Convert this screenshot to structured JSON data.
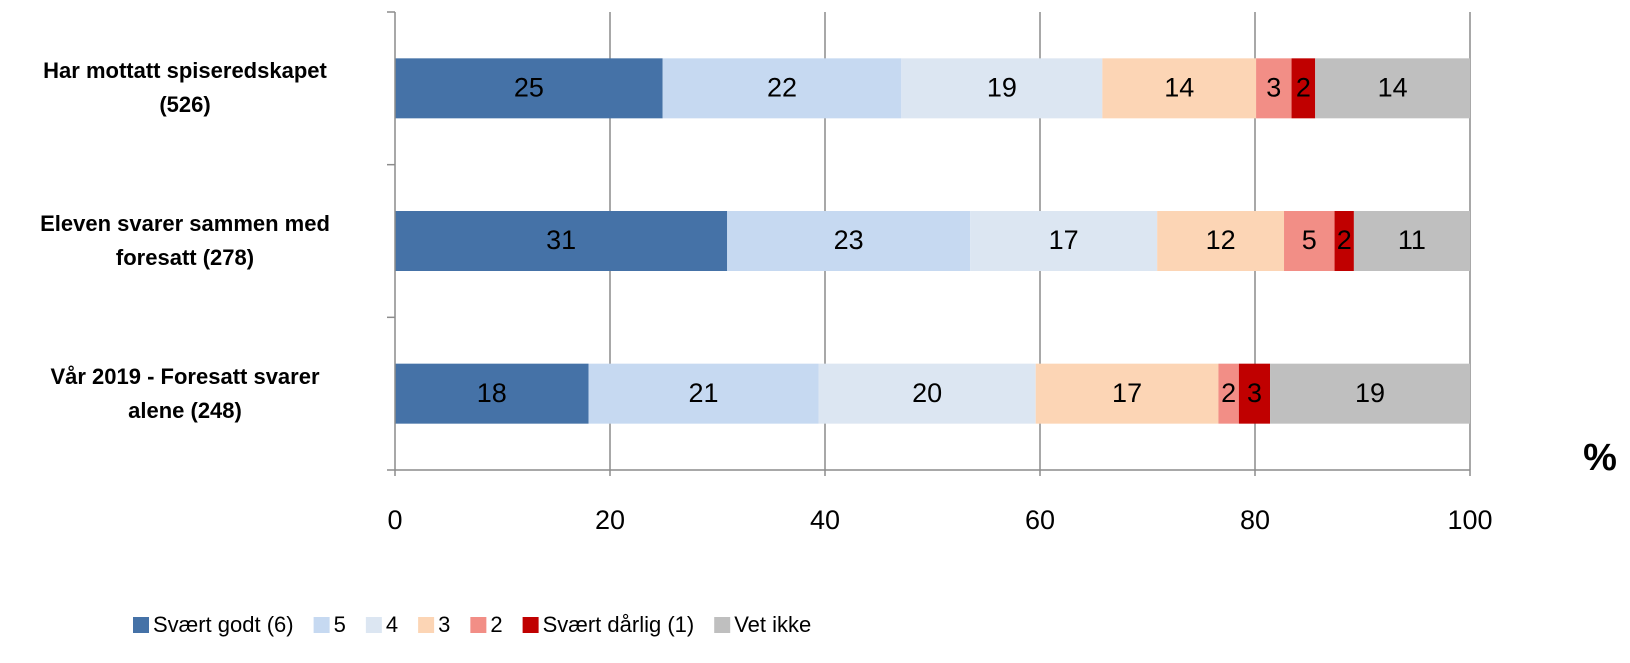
{
  "chart_data": {
    "type": "stacked-barh",
    "categories": [
      "Har mottatt spiseredskapet\n(526)",
      "Eleven svarer sammen med\nforesatt (278)",
      "Vår 2019 - Foresatt svarer\nalene (248)"
    ],
    "x_label": "%",
    "xlim": [
      0,
      100
    ],
    "xticks": [
      0,
      20,
      40,
      60,
      80,
      100
    ],
    "grid": true,
    "legend": "bottom",
    "series": [
      {
        "name": "Svært godt (6)",
        "color": "#4572a7",
        "values": [
          24.9,
          30.9,
          18.0
        ],
        "value_labels": [
          "25",
          "31",
          "18"
        ]
      },
      {
        "name": "5",
        "color": "#c6d9f1",
        "values": [
          22.2,
          22.6,
          21.4
        ],
        "value_labels": [
          "22",
          "23",
          "21"
        ]
      },
      {
        "name": "4",
        "color": "#dce6f2",
        "values": [
          18.7,
          17.4,
          20.2
        ],
        "value_labels": [
          "19",
          "17",
          "20"
        ]
      },
      {
        "name": "3",
        "color": "#fcd5b5",
        "values": [
          14.3,
          11.8,
          17.0
        ],
        "value_labels": [
          "14",
          "12",
          "17"
        ]
      },
      {
        "name": "2",
        "color": "#f28e86",
        "values": [
          3.3,
          4.7,
          1.9
        ],
        "value_labels": [
          "3",
          "5",
          "2"
        ]
      },
      {
        "name": "Svært dårlig (1)",
        "color": "#c00000",
        "values": [
          2.2,
          1.8,
          2.9
        ],
        "value_labels": [
          "2",
          "2",
          "3"
        ]
      },
      {
        "name": "Vet ikke",
        "color": "#bfbfbf",
        "values": [
          14.4,
          10.8,
          18.6
        ],
        "value_labels": [
          "14",
          "11",
          "19"
        ]
      }
    ]
  }
}
